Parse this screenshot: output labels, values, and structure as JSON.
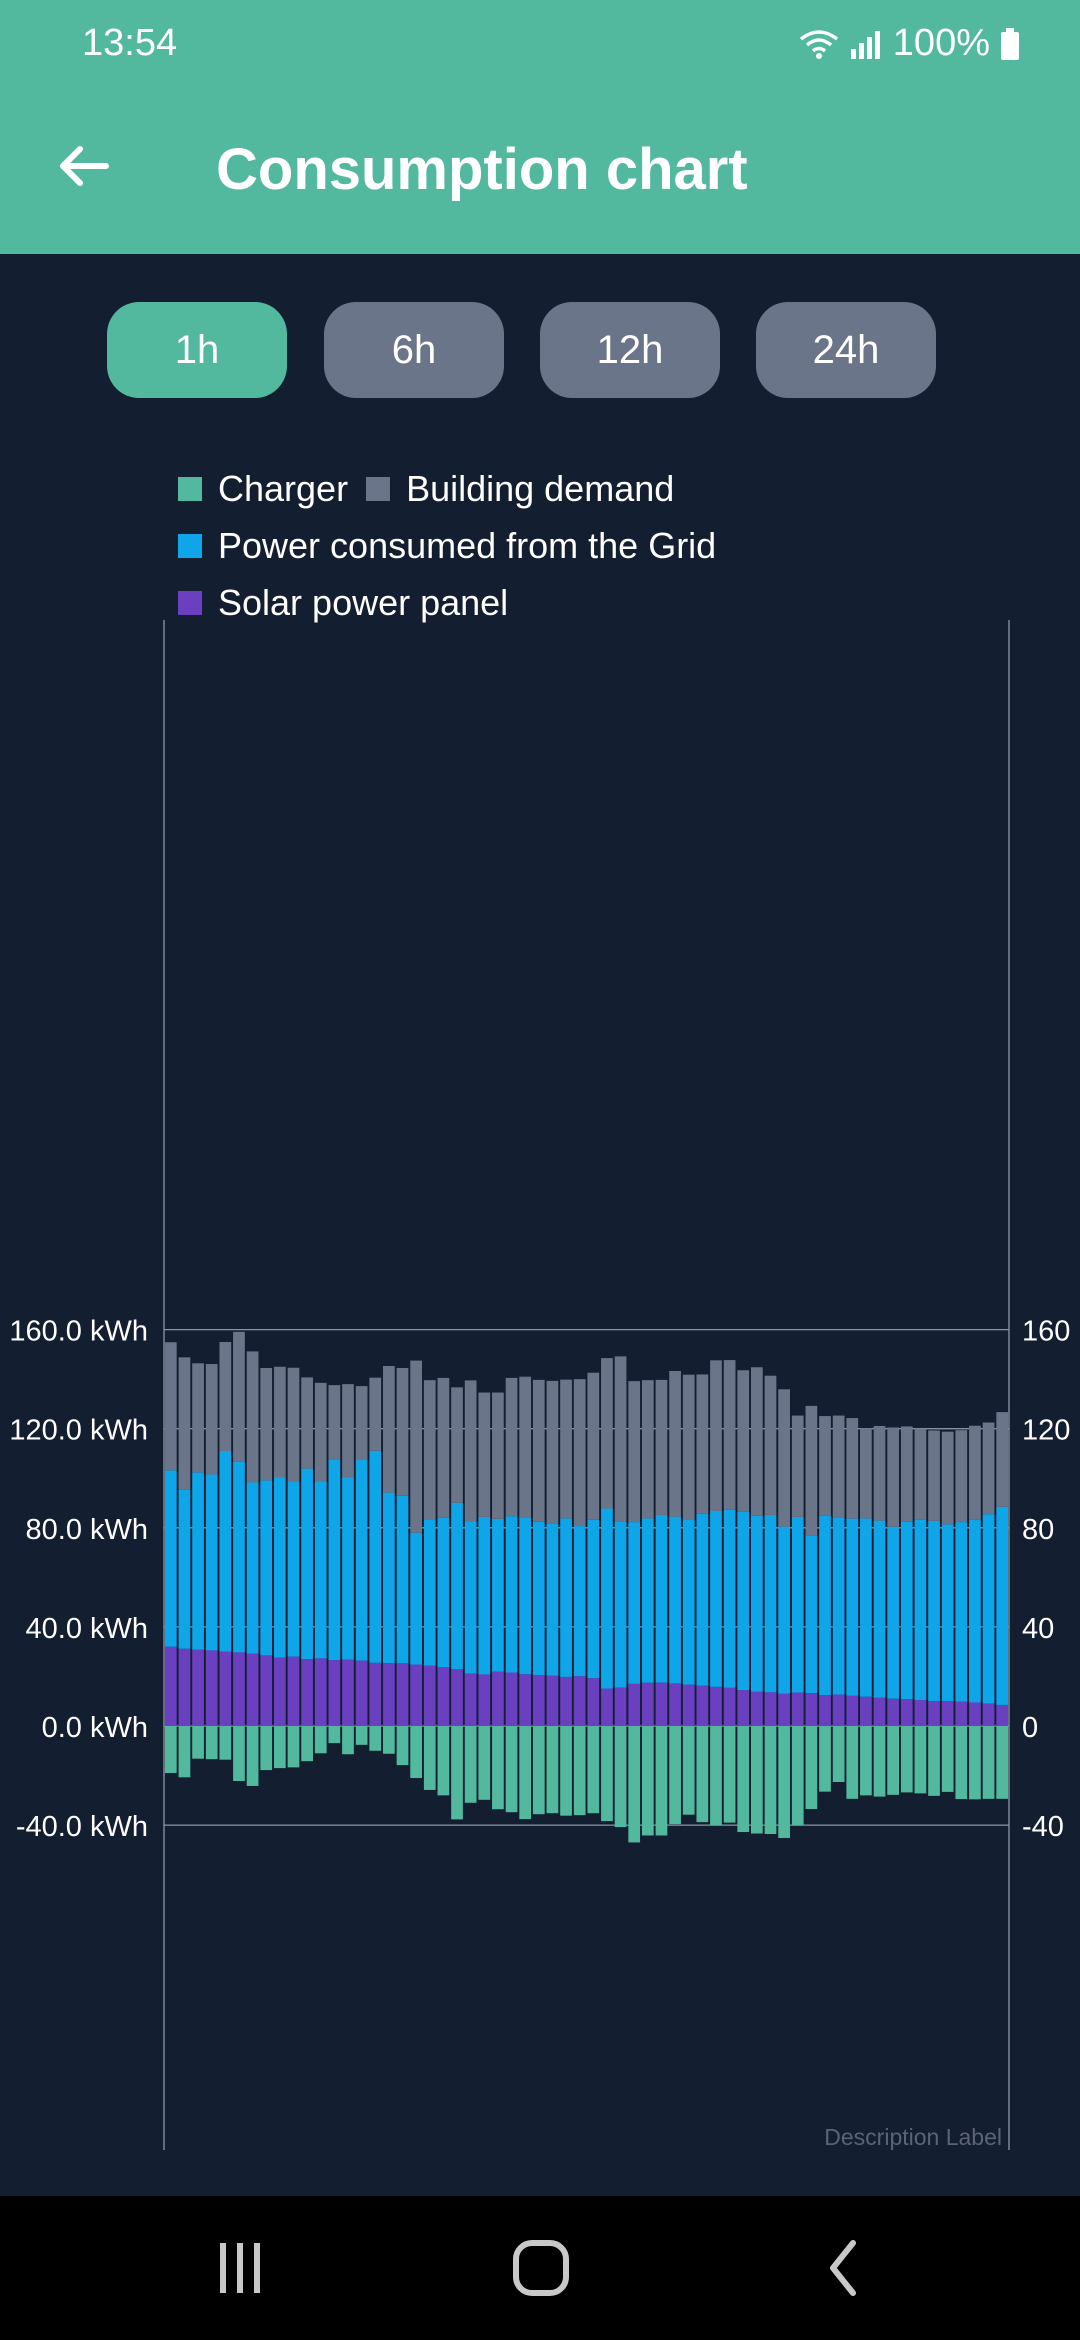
{
  "status": {
    "time": "13:54",
    "battery": "100%"
  },
  "app_bar": {
    "title": "Consumption chart"
  },
  "ranges": [
    "1h",
    "6h",
    "12h",
    "24h"
  ],
  "selected_range": "1h",
  "colors": {
    "charger": "#52b99e",
    "building": "#6b7589",
    "grid": "#0ea5e9",
    "solar": "#6a3fc0",
    "accent": "#52b99e",
    "background": "#131e30"
  },
  "chart_data": {
    "type": "bar",
    "stacked": true,
    "description_label": "Description Label",
    "ylim": [
      -68,
      180
    ],
    "y_ticks_left": [
      "160.0 kWh",
      "120.0 kWh",
      "80.0 kWh",
      "40.0 kWh",
      "0.0 kWh",
      "-40.0 kWh"
    ],
    "y_ticks_right": [
      "160",
      "120",
      "80",
      "40",
      "0",
      "-40"
    ],
    "y_tick_values": [
      160,
      120,
      80,
      40,
      0,
      -40
    ],
    "legend": [
      "Charger",
      "Building demand",
      "Power consumed from the Grid",
      "Solar power panel"
    ],
    "series": [
      {
        "name": "Solar power panel",
        "values": [
          32.0,
          31.2,
          30.8,
          30.5,
          30.0,
          29.7,
          29.2,
          28.5,
          27.6,
          28.0,
          27.0,
          27.3,
          26.6,
          26.8,
          26.4,
          25.5,
          25.4,
          25.3,
          24.8,
          24.4,
          23.7,
          23.0,
          21.2,
          20.8,
          21.9,
          21.6,
          20.9,
          20.6,
          20.3,
          19.8,
          20.1,
          19.3,
          15.1,
          15.5,
          17.0,
          17.5,
          17.5,
          17.2,
          16.7,
          16.3,
          15.8,
          15.4,
          14.5,
          13.8,
          13.6,
          13.0,
          13.5,
          13.3,
          12.5,
          12.7,
          12.2,
          11.8,
          11.4,
          11.0,
          10.9,
          10.5,
          10.1,
          10.1,
          9.8,
          9.5,
          9.1,
          8.5
        ]
      },
      {
        "name": "Power consumed from the Grid",
        "values": [
          71.2,
          64.2,
          71.6,
          71.0,
          81.0,
          76.9,
          69.1,
          70.7,
          72.7,
          70.7,
          76.9,
          71.4,
          81.1,
          73.5,
          81.2,
          85.6,
          68.8,
          67.6,
          53.2,
          59.1,
          60.3,
          67.1,
          61.5,
          63.6,
          61.7,
          63.1,
          63.4,
          61.8,
          61.4,
          64.0,
          60.6,
          63.9,
          72.7,
          67.1,
          65.3,
          66.3,
          67.7,
          67.3,
          66.8,
          69.4,
          71.0,
          71.9,
          72.0,
          71.0,
          71.6,
          67.5,
          70.9,
          63.7,
          72.3,
          71.5,
          71.5,
          72.0,
          71.5,
          69.4,
          71.5,
          72.7,
          72.7,
          71.3,
          72.5,
          73.8,
          76.4,
          80.0
        ]
      },
      {
        "name": "Building demand",
        "values": [
          51.7,
          53.4,
          44.0,
          44.6,
          44.0,
          52.5,
          52.9,
          45.3,
          44.7,
          45.9,
          36.8,
          39.8,
          29.9,
          37.7,
          29.6,
          29.5,
          51.1,
          51.6,
          69.5,
          56.1,
          56.5,
          46.6,
          56.8,
          50.2,
          51.0,
          55.8,
          56.7,
          57.3,
          57.6,
          56.0,
          59.3,
          59.4,
          60.7,
          66.6,
          56.9,
          55.8,
          54.5,
          58.8,
          58.3,
          56.2,
          60.8,
          60.4,
          57.1,
          60.0,
          56.2,
          55.4,
          40.9,
          52.2,
          40.3,
          41.1,
          40.6,
          36.4,
          38.2,
          40.1,
          38.5,
          36.8,
          36.5,
          37.4,
          37.1,
          37.9,
          37.0,
          38.2
        ]
      },
      {
        "name": "Charger",
        "values": [
          -19.0,
          -20.7,
          -13.2,
          -13.4,
          -13.6,
          -22.2,
          -24.2,
          -17.8,
          -17.0,
          -16.7,
          -14.2,
          -11.0,
          -6.9,
          -11.4,
          -7.6,
          -10.0,
          -11.2,
          -15.8,
          -21.0,
          -25.8,
          -28.0,
          -37.7,
          -31.0,
          -29.8,
          -33.6,
          -34.8,
          -37.6,
          -35.6,
          -35.2,
          -36.2,
          -36.0,
          -35.2,
          -38.4,
          -40.8,
          -47.0,
          -44.2,
          -44.2,
          -39.6,
          -35.8,
          -38.8,
          -40.2,
          -39.0,
          -42.8,
          -43.4,
          -43.6,
          -45.2,
          -40.2,
          -33.5,
          -26.5,
          -22.6,
          -29.4,
          -28.0,
          -28.5,
          -27.8,
          -26.8,
          -27.2,
          -28.2,
          -26.6,
          -29.5,
          -29.6,
          -29.4,
          -29.4
        ]
      }
    ]
  },
  "nav": {
    "recents": "recents",
    "home": "home",
    "back": "back"
  }
}
